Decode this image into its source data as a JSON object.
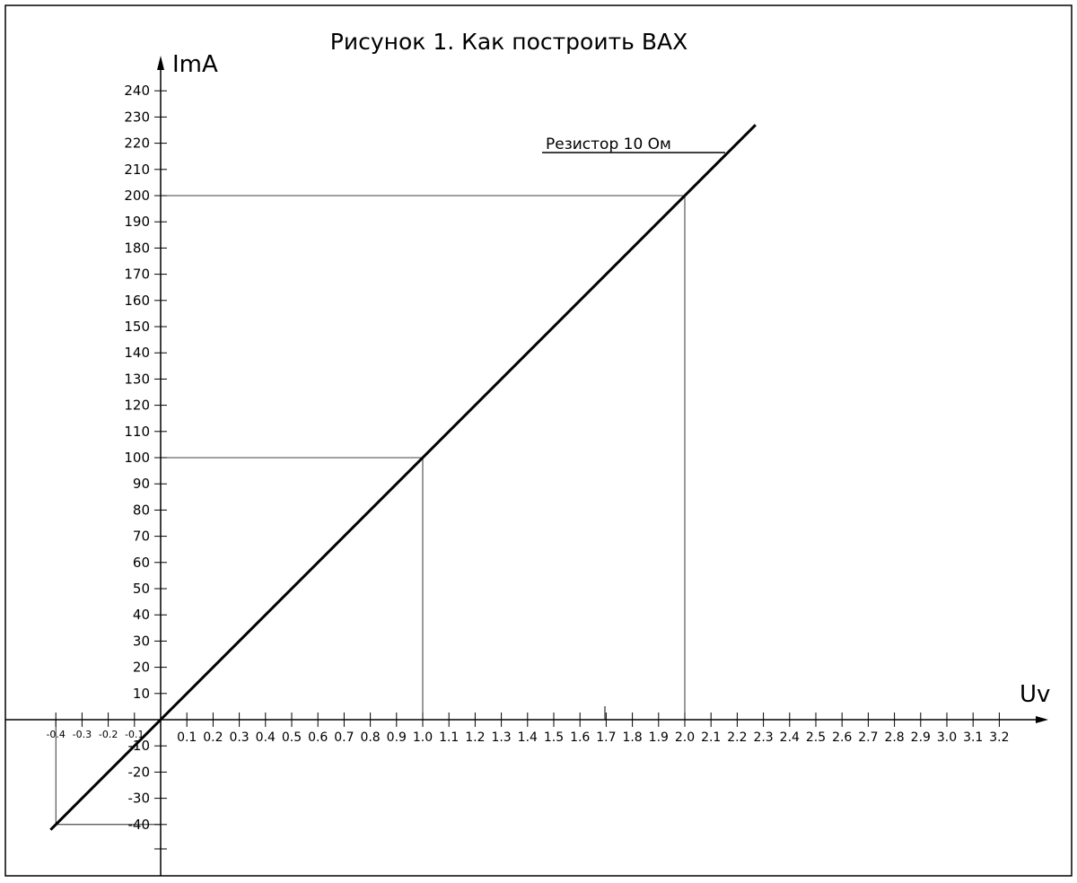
{
  "chart_data": {
    "type": "line",
    "title": "Рисунок 1. Как построить ВАХ",
    "xlabel": "Uv",
    "ylabel": "ImA",
    "xlim": [
      -0.4,
      3.3
    ],
    "ylim": [
      -50,
      245
    ],
    "x_ticks": [
      "-0.4",
      "-0.3",
      "-0.2",
      "-0.1",
      "0.1",
      "0.2",
      "0.3",
      "0.4",
      "0.5",
      "0.6",
      "0.7",
      "0.8",
      "0.9",
      "1.0",
      "1.1",
      "1.2",
      "1.3",
      "1.4",
      "1.5",
      "1.6",
      "1.7",
      "1.8",
      "1.9",
      "2.0",
      "2.1",
      "2.2",
      "2.3",
      "2.4",
      "2.5",
      "2.6",
      "2.7",
      "2.8",
      "2.9",
      "3.0",
      "3.1",
      "3.2"
    ],
    "y_ticks": [
      "240",
      "230",
      "220",
      "210",
      "200",
      "190",
      "180",
      "170",
      "160",
      "150",
      "140",
      "130",
      "120",
      "110",
      "100",
      "90",
      "80",
      "70",
      "60",
      "50",
      "40",
      "30",
      "20",
      "10",
      "-10",
      "-20",
      "-30",
      "-40"
    ],
    "series": [
      {
        "name": "Резистор 10 Ом",
        "x": [
          -0.42,
          0.0,
          2.27
        ],
        "y": [
          -42,
          0,
          227
        ]
      }
    ],
    "guides": [
      {
        "x": 1.0,
        "y": 100
      },
      {
        "x": 2.0,
        "y": 200
      },
      {
        "x": -0.4,
        "y": -40
      }
    ],
    "annotation": "Резистор 10 Ом",
    "grid": false
  }
}
